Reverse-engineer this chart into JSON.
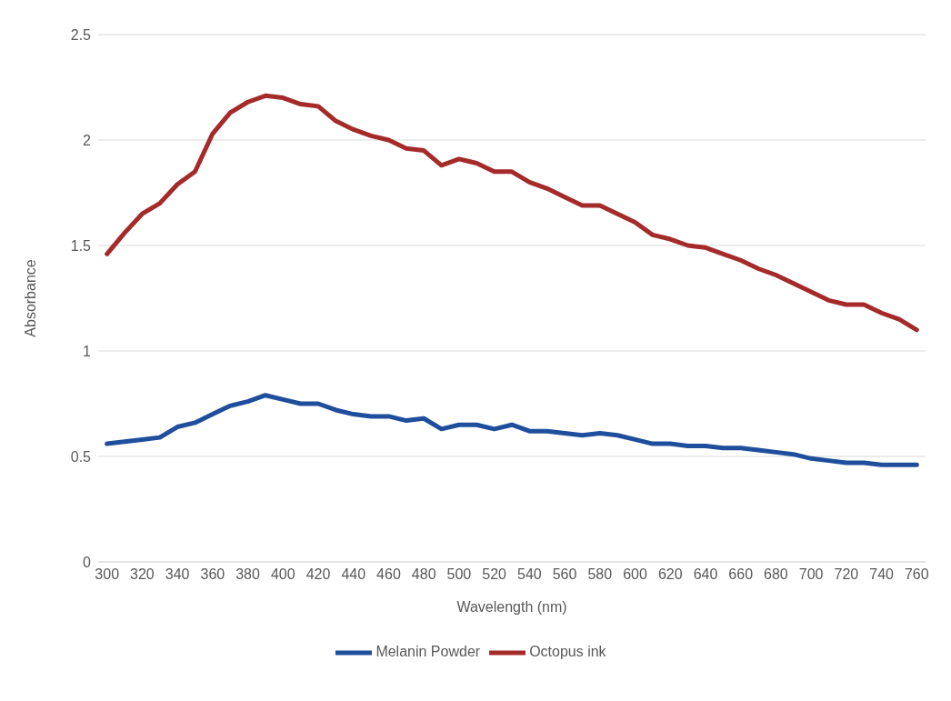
{
  "chart_data": {
    "type": "line",
    "xlabel": "Wavelength (nm)",
    "ylabel": "Absorbance",
    "x": [
      300,
      310,
      320,
      330,
      340,
      350,
      360,
      370,
      380,
      390,
      400,
      410,
      420,
      430,
      440,
      450,
      460,
      470,
      480,
      490,
      500,
      510,
      520,
      530,
      540,
      550,
      560,
      570,
      580,
      590,
      600,
      610,
      620,
      630,
      640,
      650,
      660,
      670,
      680,
      690,
      700,
      710,
      720,
      730,
      740,
      750,
      760
    ],
    "series": [
      {
        "name": "Melanin Powder",
        "color": "#1f4e9c",
        "values": [
          0.56,
          0.57,
          0.58,
          0.59,
          0.64,
          0.66,
          0.7,
          0.74,
          0.76,
          0.79,
          0.77,
          0.75,
          0.75,
          0.72,
          0.7,
          0.69,
          0.69,
          0.67,
          0.68,
          0.63,
          0.65,
          0.65,
          0.63,
          0.65,
          0.62,
          0.62,
          0.61,
          0.6,
          0.61,
          0.6,
          0.58,
          0.56,
          0.56,
          0.55,
          0.55,
          0.54,
          0.54,
          0.53,
          0.52,
          0.51,
          0.49,
          0.48,
          0.47,
          0.47,
          0.46,
          0.46,
          0.46
        ]
      },
      {
        "name": "Octopus ink",
        "color": "#a52a2a",
        "values": [
          1.46,
          1.56,
          1.65,
          1.7,
          1.79,
          1.85,
          2.03,
          2.13,
          2.18,
          2.21,
          2.2,
          2.17,
          2.16,
          2.09,
          2.05,
          2.02,
          2.0,
          1.96,
          1.95,
          1.88,
          1.91,
          1.89,
          1.85,
          1.85,
          1.8,
          1.77,
          1.73,
          1.69,
          1.69,
          1.65,
          1.61,
          1.55,
          1.53,
          1.5,
          1.49,
          1.46,
          1.43,
          1.39,
          1.36,
          1.32,
          1.28,
          1.24,
          1.22,
          1.22,
          1.18,
          1.15,
          1.1
        ]
      }
    ],
    "xlim": [
      295,
      765
    ],
    "xticks": [
      300,
      320,
      340,
      360,
      380,
      400,
      420,
      440,
      460,
      480,
      500,
      520,
      540,
      560,
      580,
      600,
      620,
      640,
      660,
      680,
      700,
      720,
      740,
      760
    ],
    "ylim": [
      0,
      2.5
    ],
    "yticks": [
      0,
      0.5,
      1,
      1.5,
      2,
      2.5
    ],
    "grid": "y",
    "legend": "bottom",
    "marker": "none",
    "line_style": "solid"
  }
}
